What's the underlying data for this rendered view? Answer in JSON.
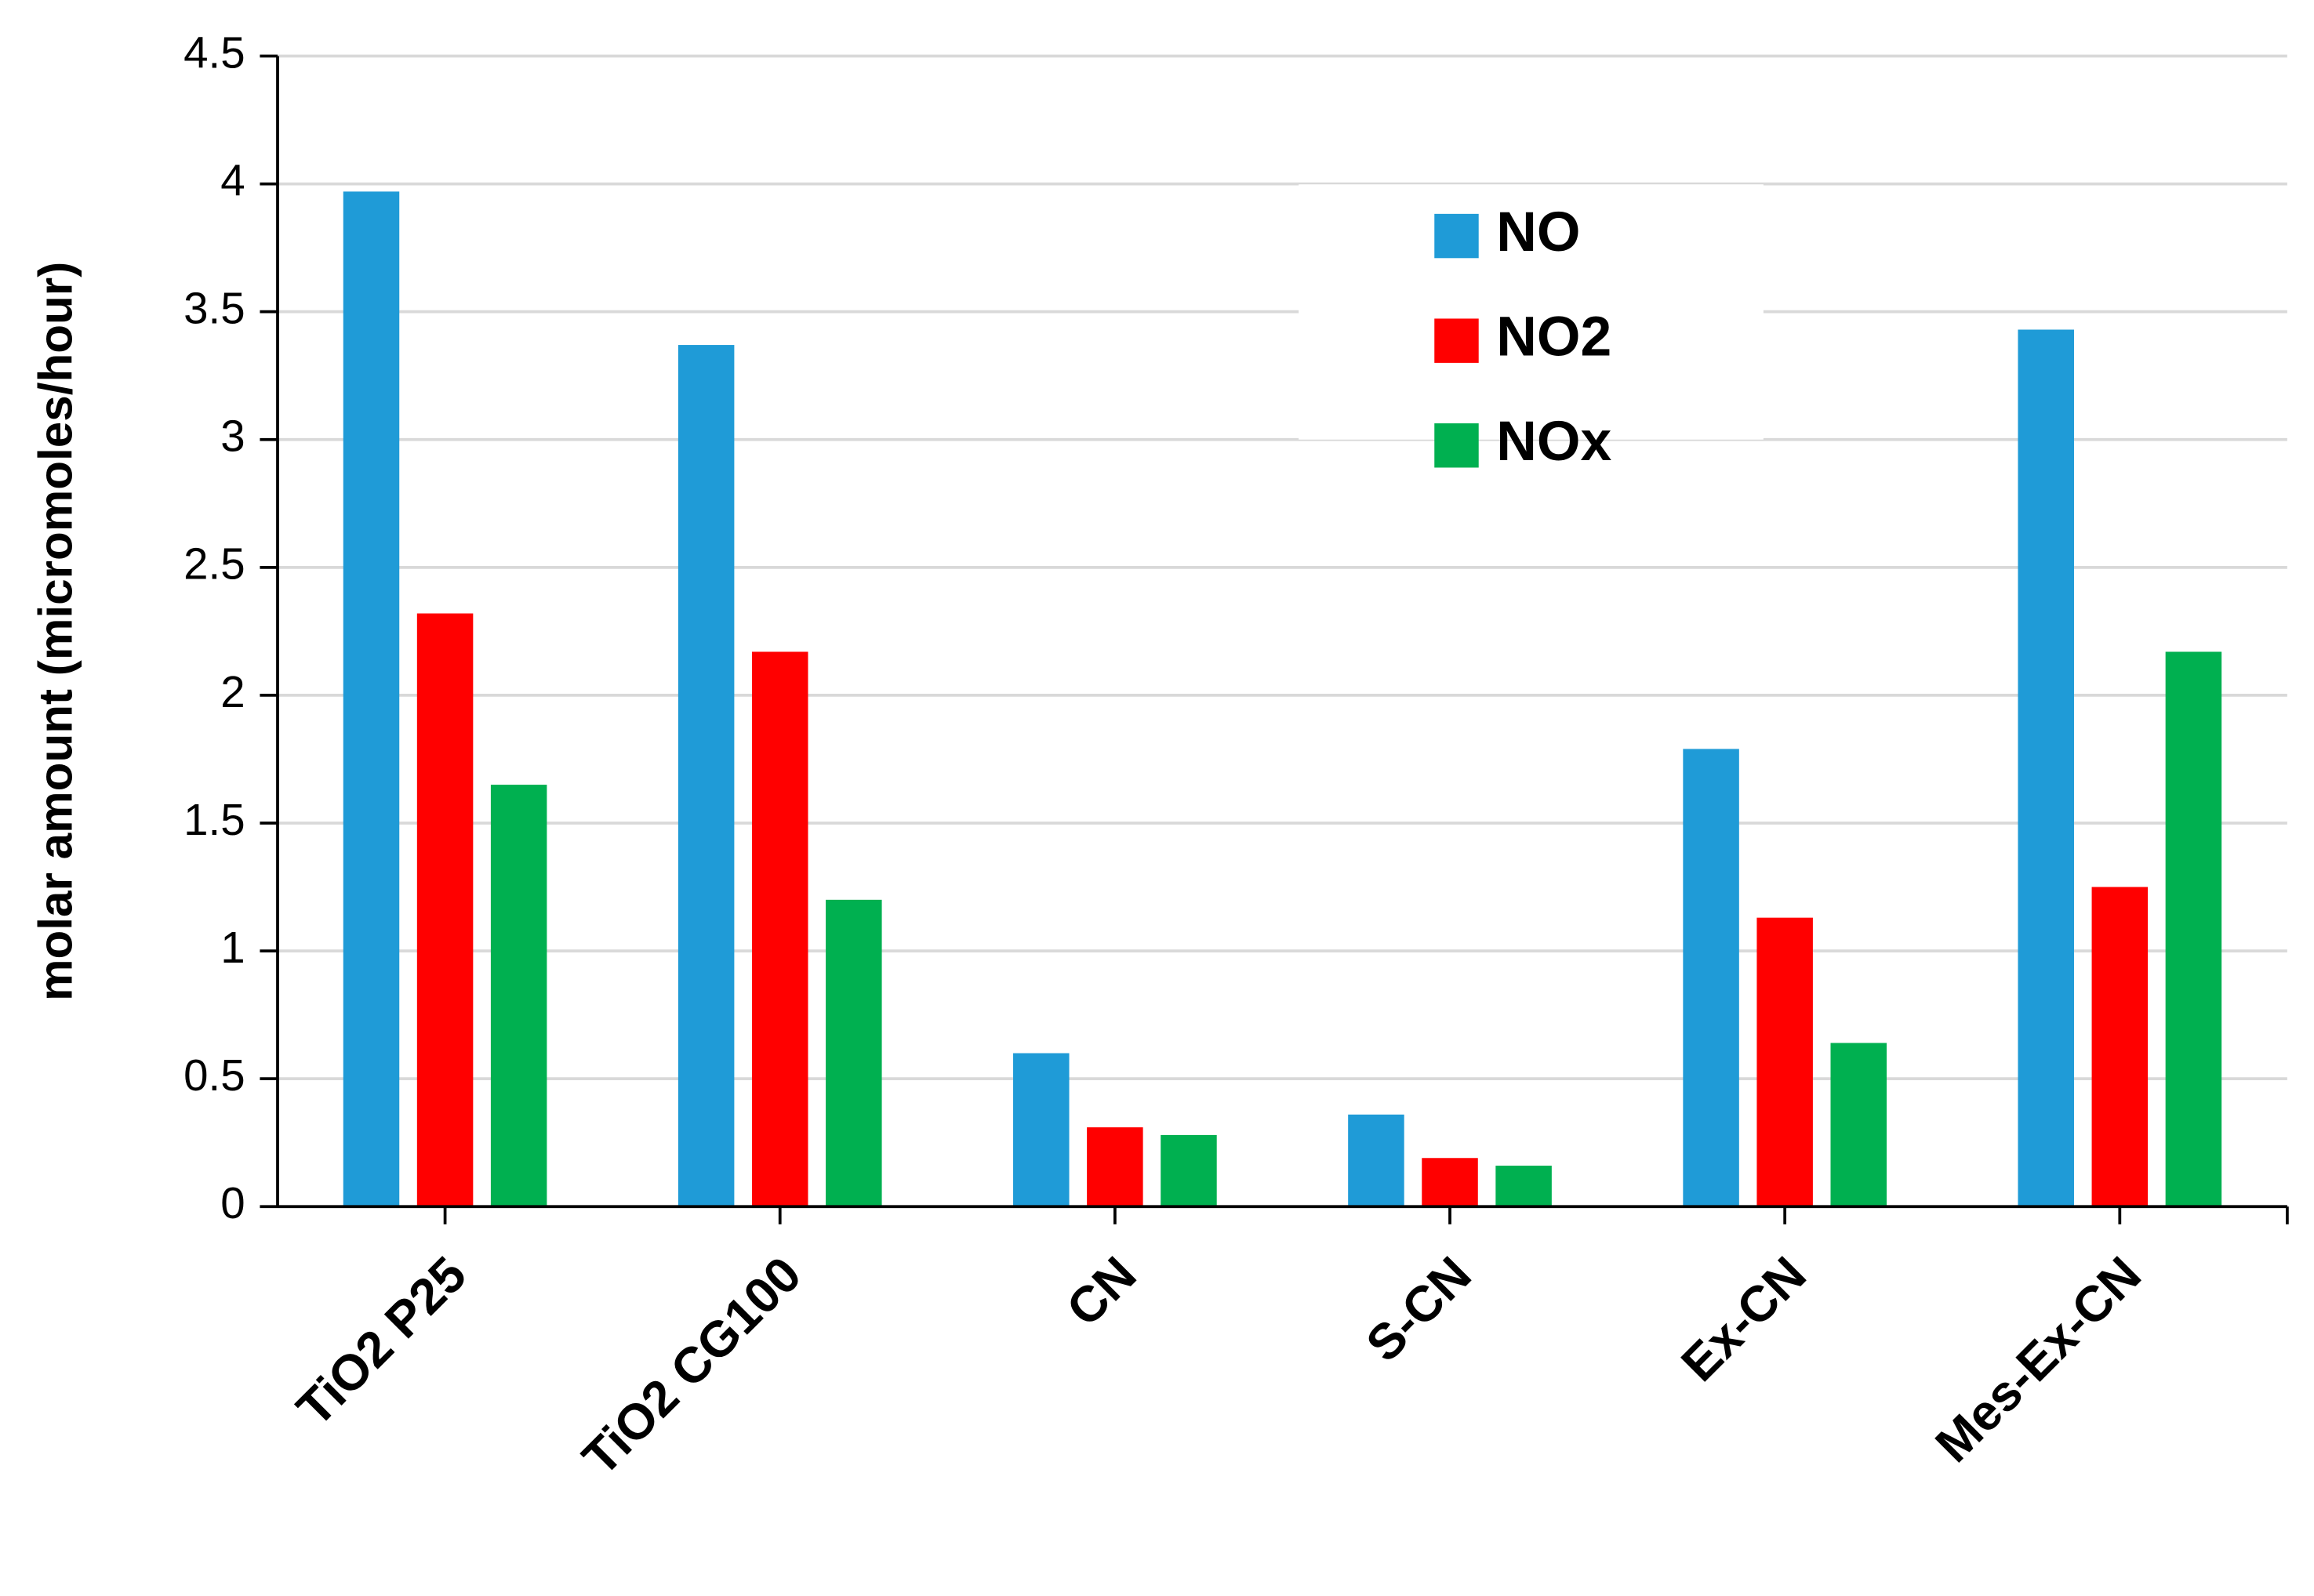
{
  "chart_data": {
    "type": "bar",
    "y_label": "molar amount (micromoles/hour)",
    "categories": [
      "TiO2 P25",
      "TiO2 CG100",
      "CN",
      "S-CN",
      "Ex-CN",
      "Mes-Ex-CN"
    ],
    "series": [
      {
        "name": "NO",
        "color": "#1f9bd7",
        "values": [
          3.97,
          3.37,
          0.6,
          0.36,
          1.79,
          3.43
        ]
      },
      {
        "name": "NO2",
        "color": "#ff0000",
        "values": [
          2.32,
          2.17,
          0.31,
          0.19,
          1.13,
          1.25
        ]
      },
      {
        "name": "NOx",
        "color": "#00b050",
        "values": [
          1.65,
          1.2,
          0.28,
          0.16,
          0.64,
          2.17
        ]
      }
    ],
    "ylim": [
      0,
      4.5
    ],
    "yticks": [
      0,
      0.5,
      1,
      1.5,
      2,
      2.5,
      3,
      3.5,
      4,
      4.5
    ],
    "grid": true,
    "legend": "upper center"
  }
}
